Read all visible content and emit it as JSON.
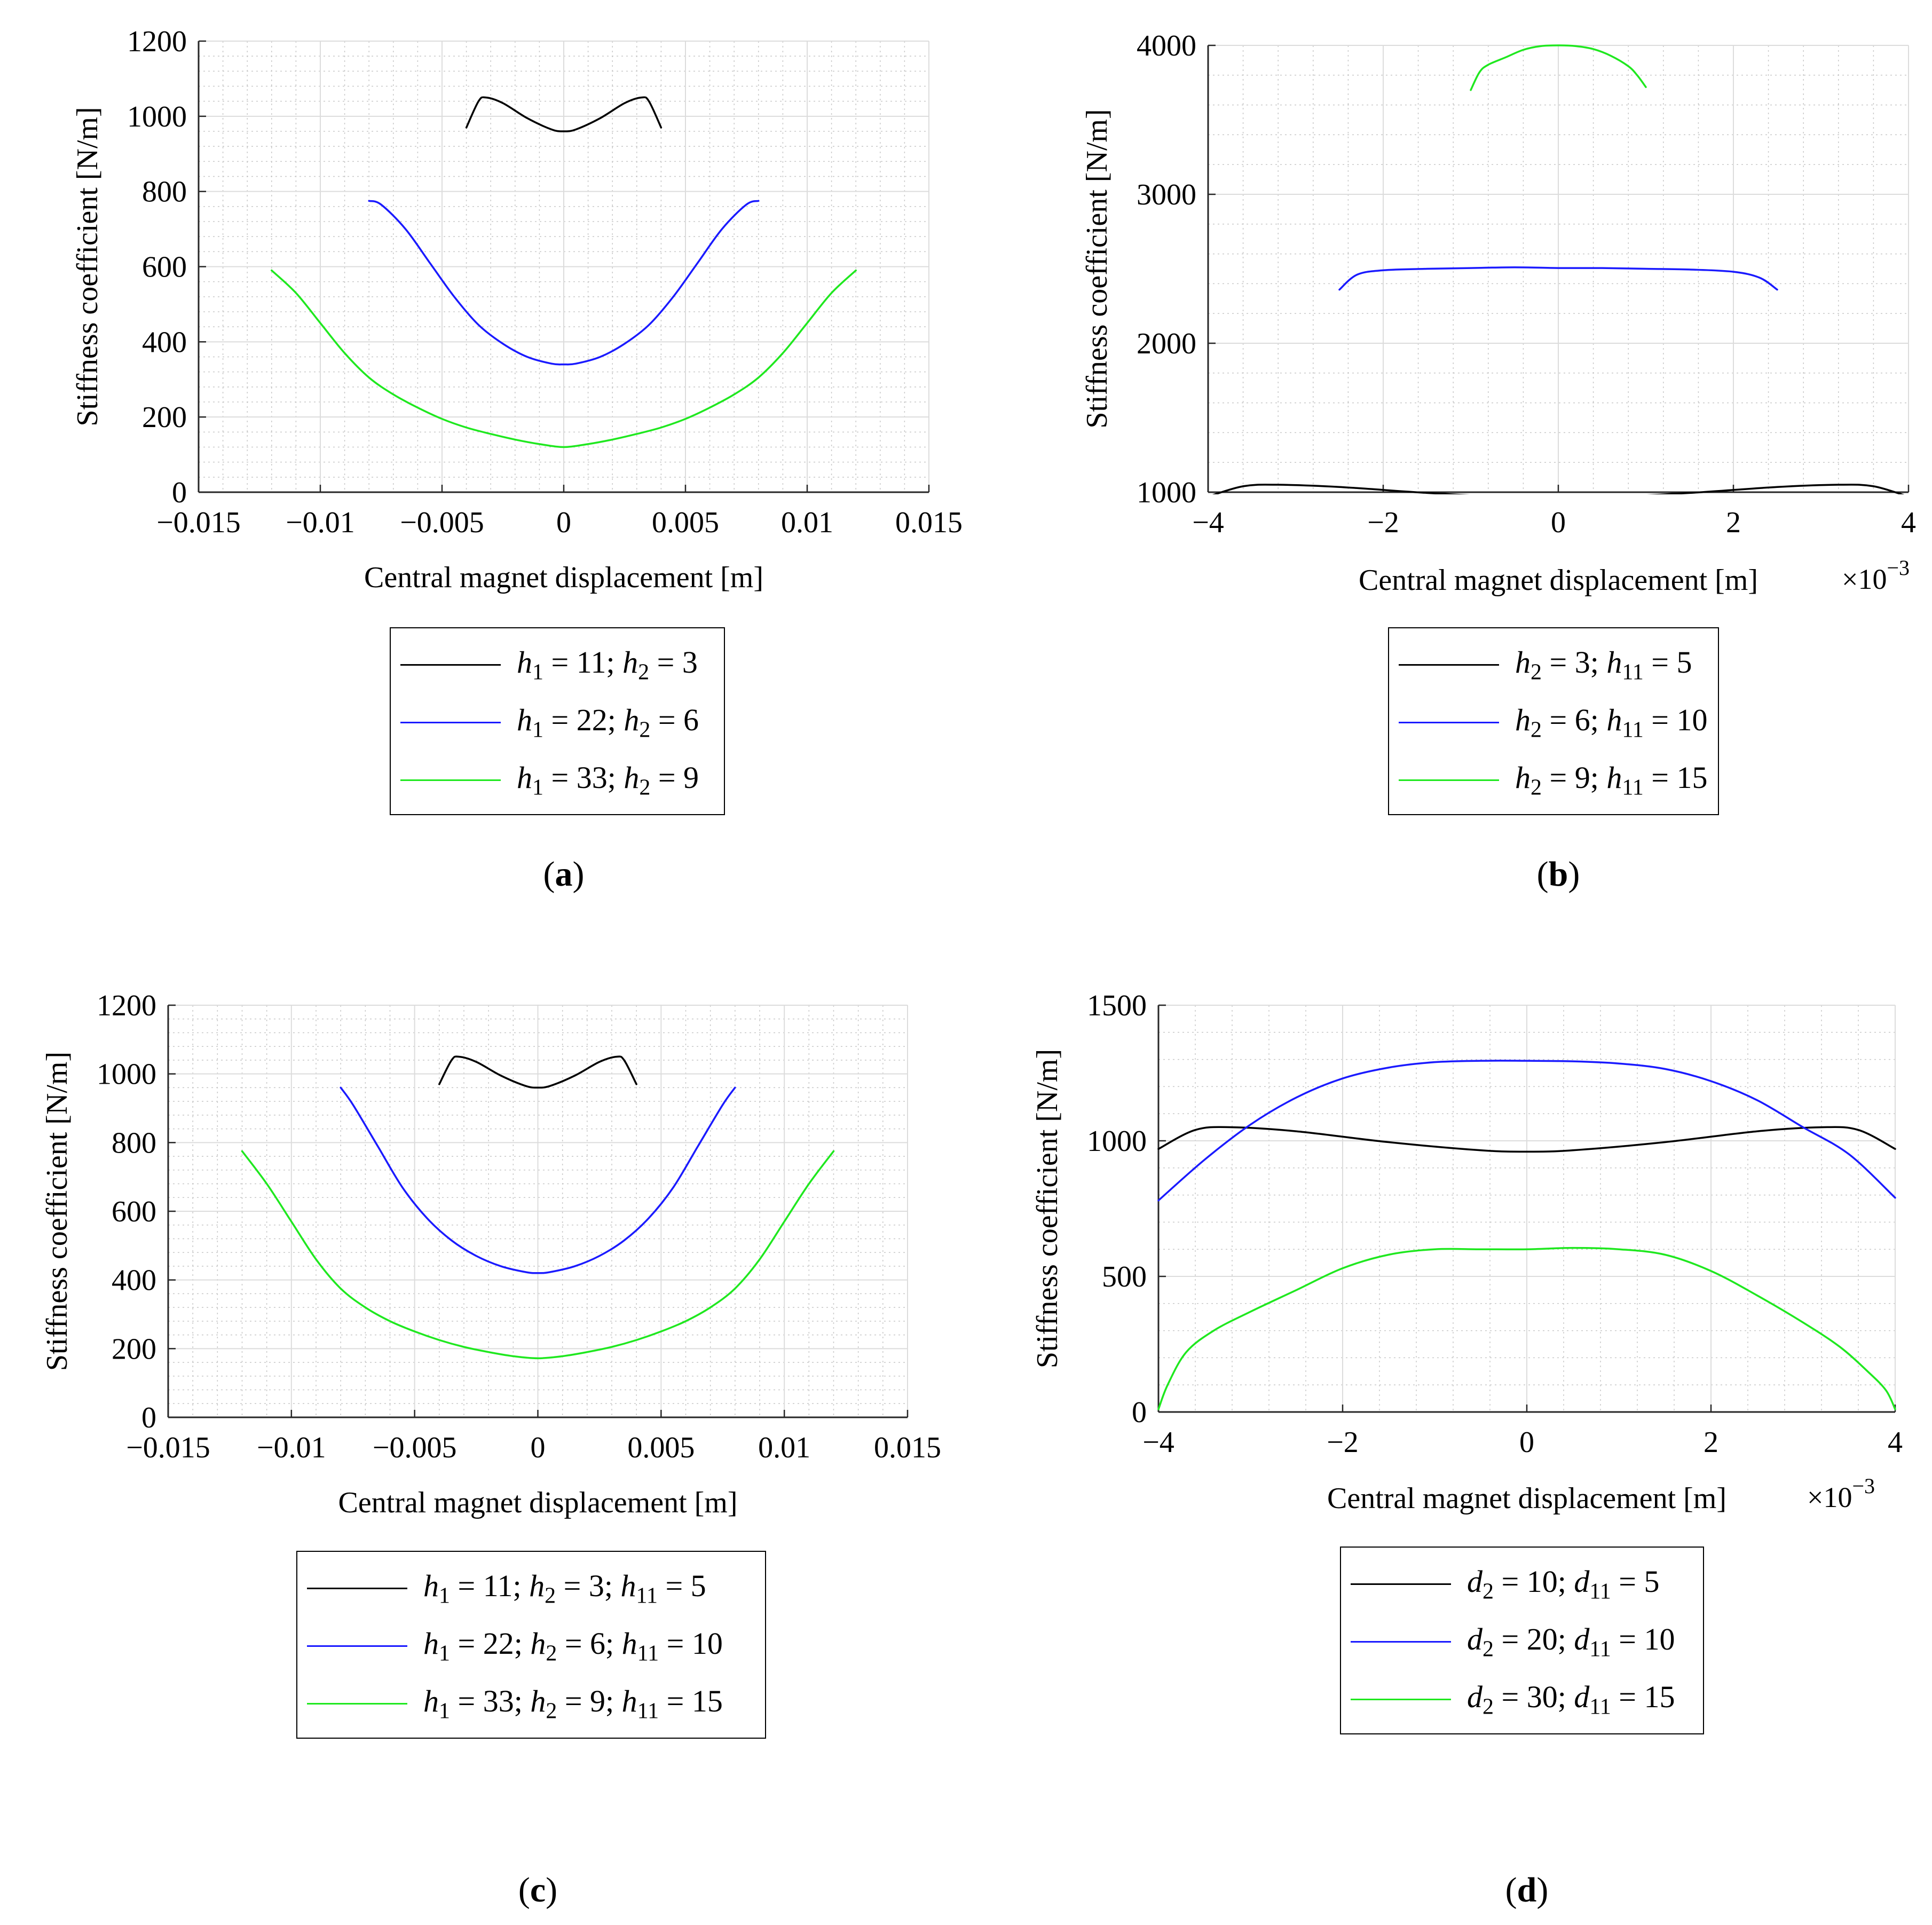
{
  "colors": {
    "black": "#000000",
    "blue": "#1a1aff",
    "green": "#1fe81f"
  },
  "chart_data": [
    {
      "id": "a",
      "type": "line",
      "caption_letter": "a",
      "xlabel": "Central magnet displacement [m]",
      "ylabel": "Stiffness coefficient [N/m]",
      "xlim": [
        -0.015,
        0.015
      ],
      "ylim": [
        0,
        1200
      ],
      "xticks": [
        -0.015,
        -0.01,
        -0.005,
        0,
        0.005,
        0.01,
        0.015
      ],
      "xtick_labels": [
        "−0.015",
        "−0.01",
        "−0.005",
        "0",
        "0.005",
        "0.01",
        "0.015"
      ],
      "yticks": [
        0,
        200,
        400,
        600,
        800,
        1000,
        1200
      ],
      "ytick_labels": [
        "0",
        "200",
        "400",
        "600",
        "800",
        "1000",
        "1200"
      ],
      "exponent_label": "",
      "grid": true,
      "legend_position": "below",
      "series": [
        {
          "name": "h1 = 11; h2 = 3",
          "legend": [
            [
              "h",
              "1",
              " = 11;  "
            ],
            [
              "h",
              "2",
              " = 3"
            ]
          ],
          "color": "black",
          "x": [
            -0.004,
            -0.0035,
            -0.0032,
            -0.0025,
            -0.0015,
            -0.0005,
            0,
            0.0005,
            0.0015,
            0.0025,
            0.0032,
            0.0035,
            0.004
          ],
          "y": [
            970,
            1040,
            1050,
            1035,
            995,
            965,
            960,
            965,
            995,
            1035,
            1050,
            1040,
            970
          ]
        },
        {
          "name": "h1 = 22; h2 = 6",
          "legend": [
            [
              "h",
              "1",
              " = 22;  "
            ],
            [
              "h",
              "2",
              " = 6"
            ]
          ],
          "color": "blue",
          "x": [
            -0.008,
            -0.0075,
            -0.0065,
            -0.0055,
            -0.0045,
            -0.0035,
            -0.0025,
            -0.0015,
            -0.0005,
            0,
            0.0005,
            0.0015,
            0.0025,
            0.0035,
            0.0045,
            0.0055,
            0.0065,
            0.0075,
            0.008
          ],
          "y": [
            775,
            765,
            700,
            610,
            520,
            445,
            395,
            360,
            342,
            340,
            342,
            360,
            395,
            445,
            520,
            610,
            700,
            765,
            775
          ]
        },
        {
          "name": "h1 = 33; h2 = 9",
          "legend": [
            [
              "h",
              "1",
              " = 33;  "
            ],
            [
              "h",
              "2",
              " = 9"
            ]
          ],
          "color": "green",
          "x": [
            -0.012,
            -0.011,
            -0.01,
            -0.009,
            -0.008,
            -0.007,
            -0.006,
            -0.005,
            -0.004,
            -0.003,
            -0.002,
            -0.001,
            0,
            0.001,
            0.002,
            0.003,
            0.004,
            0.005,
            0.006,
            0.007,
            0.008,
            0.009,
            0.01,
            0.011,
            0.012
          ],
          "y": [
            590,
            530,
            450,
            370,
            305,
            260,
            225,
            195,
            172,
            155,
            140,
            128,
            120,
            128,
            140,
            155,
            172,
            195,
            225,
            260,
            305,
            370,
            450,
            530,
            590
          ]
        }
      ]
    },
    {
      "id": "b",
      "type": "line",
      "caption_letter": "b",
      "xlabel": "Central magnet displacement [m]",
      "ylabel": "Stiffness coefficient [N/m]",
      "xlim": [
        -4,
        4
      ],
      "ylim": [
        1000,
        4000
      ],
      "xticks": [
        -4,
        -2,
        0,
        2,
        4
      ],
      "xtick_labels": [
        "−4",
        "−2",
        "0",
        "2",
        "4"
      ],
      "yticks": [
        1000,
        2000,
        3000,
        4000
      ],
      "ytick_labels": [
        "1000",
        "2000",
        "3000",
        "4000"
      ],
      "exponent_label": "×10",
      "exponent_power": "−3",
      "grid": true,
      "legend_position": "below",
      "series": [
        {
          "name": "h2 = 3; h11 = 5",
          "legend": [
            [
              "h",
              "2",
              " = 3;  "
            ],
            [
              "h",
              "11",
              " = 5"
            ]
          ],
          "color": "black",
          "x": [
            -4,
            -3.6,
            -3.2,
            -2.5,
            -1.5,
            -0.5,
            0,
            0.5,
            1.5,
            2.5,
            3.2,
            3.6,
            4
          ],
          "y": [
            970,
            1040,
            1050,
            1035,
            995,
            965,
            960,
            965,
            995,
            1035,
            1050,
            1040,
            970
          ]
        },
        {
          "name": "h2 = 6; h11 = 10",
          "legend": [
            [
              "h",
              "2",
              " = 6;  "
            ],
            [
              "h",
              "11",
              " = 10"
            ]
          ],
          "color": "blue",
          "x": [
            -2.5,
            -2.3,
            -2.0,
            -1.5,
            -1.0,
            -0.5,
            0,
            0.5,
            1.0,
            1.5,
            2.0,
            2.3,
            2.5
          ],
          "y": [
            2360,
            2460,
            2490,
            2500,
            2505,
            2510,
            2505,
            2505,
            2500,
            2495,
            2480,
            2440,
            2360
          ]
        },
        {
          "name": "h2 = 9; h11 = 15",
          "legend": [
            [
              "h",
              "2",
              " = 9;  "
            ],
            [
              "h",
              "11",
              " = 15"
            ]
          ],
          "color": "green",
          "x": [
            -1.0,
            -0.9,
            -0.8,
            -0.6,
            -0.4,
            -0.2,
            0,
            0.2,
            0.4,
            0.6,
            0.8,
            0.9,
            1.0
          ],
          "y": [
            3700,
            3820,
            3870,
            3920,
            3970,
            3995,
            4000,
            3995,
            3975,
            3930,
            3860,
            3800,
            3720
          ]
        }
      ]
    },
    {
      "id": "c",
      "type": "line",
      "caption_letter": "c",
      "xlabel": "Central magnet displacement [m]",
      "ylabel": "Stiffness coefficient [N/m]",
      "xlim": [
        -0.015,
        0.015
      ],
      "ylim": [
        0,
        1200
      ],
      "xticks": [
        -0.015,
        -0.01,
        -0.005,
        0,
        0.005,
        0.01,
        0.015
      ],
      "xtick_labels": [
        "−0.015",
        "−0.01",
        "−0.005",
        "0",
        "0.005",
        "0.01",
        "0.015"
      ],
      "yticks": [
        0,
        200,
        400,
        600,
        800,
        1000,
        1200
      ],
      "ytick_labels": [
        "0",
        "200",
        "400",
        "600",
        "800",
        "1000",
        "1200"
      ],
      "exponent_label": "",
      "grid": true,
      "legend_position": "below",
      "series": [
        {
          "name": "h1 = 11; h2 = 3; h11 = 5",
          "legend": [
            [
              "h",
              "1",
              " = 11;  "
            ],
            [
              "h",
              "2",
              " = 3;  "
            ],
            [
              "h",
              "11",
              " = 5"
            ]
          ],
          "color": "black",
          "x": [
            -0.004,
            -0.0035,
            -0.0032,
            -0.0025,
            -0.0015,
            -0.0005,
            0,
            0.0005,
            0.0015,
            0.0025,
            0.0032,
            0.0035,
            0.004
          ],
          "y": [
            970,
            1040,
            1050,
            1035,
            995,
            965,
            960,
            965,
            995,
            1035,
            1050,
            1040,
            970
          ]
        },
        {
          "name": "h1 = 22; h2 = 6; h11 = 10",
          "legend": [
            [
              "h",
              "1",
              " = 22;  "
            ],
            [
              "h",
              "2",
              " = 6;  "
            ],
            [
              "h",
              "11",
              " = 10"
            ]
          ],
          "color": "blue",
          "x": [
            -0.008,
            -0.0075,
            -0.0065,
            -0.0055,
            -0.0045,
            -0.0035,
            -0.0025,
            -0.0015,
            -0.0005,
            0,
            0.0005,
            0.0015,
            0.0025,
            0.0035,
            0.0045,
            0.0055,
            0.0065,
            0.0075,
            0.008
          ],
          "y": [
            960,
            910,
            790,
            670,
            580,
            515,
            470,
            440,
            423,
            420,
            423,
            440,
            470,
            515,
            580,
            670,
            790,
            910,
            960
          ]
        },
        {
          "name": "h1 = 33; h2 = 9; h11 = 15",
          "legend": [
            [
              "h",
              "1",
              " = 33;  "
            ],
            [
              "h",
              "2",
              " = 9;  "
            ],
            [
              "h",
              "11",
              " = 15"
            ]
          ],
          "color": "green",
          "x": [
            -0.012,
            -0.011,
            -0.01,
            -0.009,
            -0.008,
            -0.007,
            -0.006,
            -0.005,
            -0.004,
            -0.003,
            -0.002,
            -0.001,
            0,
            0.001,
            0.002,
            0.003,
            0.004,
            0.005,
            0.006,
            0.007,
            0.008,
            0.009,
            0.01,
            0.011,
            0.012
          ],
          "y": [
            775,
            680,
            570,
            460,
            375,
            320,
            280,
            250,
            225,
            205,
            190,
            178,
            172,
            178,
            190,
            205,
            225,
            250,
            280,
            320,
            375,
            460,
            570,
            680,
            775
          ]
        }
      ]
    },
    {
      "id": "d",
      "type": "line",
      "caption_letter": "d",
      "xlabel": "Central magnet displacement [m]",
      "ylabel": "Stiffness coefficient [N/m]",
      "xlim": [
        -4,
        4
      ],
      "ylim": [
        0,
        1500
      ],
      "xticks": [
        -4,
        -2,
        0,
        2,
        4
      ],
      "xtick_labels": [
        "−4",
        "−2",
        "0",
        "2",
        "4"
      ],
      "yticks": [
        0,
        500,
        1000,
        1500
      ],
      "ytick_labels": [
        "0",
        "500",
        "1000",
        "1500"
      ],
      "exponent_label": "×10",
      "exponent_power": "−3",
      "grid": true,
      "legend_position": "below",
      "series": [
        {
          "name": "d2 = 10; d11 = 5",
          "legend": [
            [
              "d",
              "2",
              " = 10;  "
            ],
            [
              "d",
              "11",
              " = 5"
            ]
          ],
          "color": "black",
          "x": [
            -4,
            -3.6,
            -3.2,
            -2.5,
            -1.5,
            -0.5,
            0,
            0.5,
            1.5,
            2.5,
            3.2,
            3.6,
            4
          ],
          "y": [
            970,
            1040,
            1050,
            1035,
            995,
            965,
            960,
            965,
            995,
            1035,
            1050,
            1040,
            970
          ]
        },
        {
          "name": "d2 = 20; d11 = 10",
          "legend": [
            [
              "d",
              "2",
              " = 20;  "
            ],
            [
              "d",
              "11",
              " = 10"
            ]
          ],
          "color": "blue",
          "x": [
            -4,
            -3.5,
            -3,
            -2.5,
            -2,
            -1.5,
            -1,
            -0.5,
            0,
            0.5,
            1,
            1.5,
            2,
            2.5,
            3,
            3.5,
            4
          ],
          "y": [
            780,
            930,
            1060,
            1160,
            1230,
            1270,
            1290,
            1295,
            1295,
            1293,
            1285,
            1265,
            1220,
            1150,
            1050,
            950,
            790
          ]
        },
        {
          "name": "d2 = 30; d11 = 15",
          "legend": [
            [
              "d",
              "2",
              " = 30;  "
            ],
            [
              "d",
              "11",
              " = 15"
            ]
          ],
          "color": "green",
          "x": [
            -4,
            -3.9,
            -3.7,
            -3.4,
            -3,
            -2.5,
            -2,
            -1.5,
            -1,
            -0.5,
            0,
            0.5,
            1,
            1.5,
            2,
            2.5,
            3,
            3.4,
            3.7,
            3.9,
            4
          ],
          "y": [
            10,
            100,
            220,
            300,
            370,
            450,
            530,
            580,
            600,
            600,
            600,
            605,
            600,
            580,
            520,
            430,
            330,
            240,
            150,
            80,
            10
          ]
        }
      ]
    }
  ]
}
